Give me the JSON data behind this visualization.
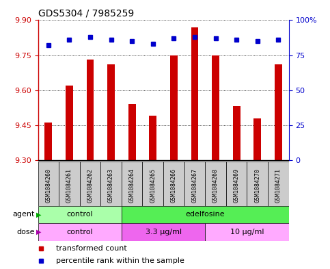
{
  "title": "GDS5304 / 7985259",
  "samples": [
    "GSM1084260",
    "GSM1084261",
    "GSM1084262",
    "GSM1084263",
    "GSM1084264",
    "GSM1084265",
    "GSM1084266",
    "GSM1084267",
    "GSM1084268",
    "GSM1084269",
    "GSM1084270",
    "GSM1084271"
  ],
  "bar_values": [
    9.46,
    9.62,
    9.73,
    9.71,
    9.54,
    9.49,
    9.75,
    9.87,
    9.75,
    9.53,
    9.48,
    9.71
  ],
  "percentile_values": [
    82,
    86,
    88,
    86,
    85,
    83,
    87,
    88,
    87,
    86,
    85,
    86
  ],
  "ylim_left": [
    9.3,
    9.9
  ],
  "yticks_left": [
    9.3,
    9.45,
    9.6,
    9.75,
    9.9
  ],
  "yticks_right": [
    0,
    25,
    50,
    75,
    100
  ],
  "bar_color": "#cc0000",
  "dot_color": "#0000cc",
  "bar_bottom": 9.3,
  "agent_groups": [
    {
      "label": "control",
      "start": 0,
      "end": 4,
      "color": "#aaffaa"
    },
    {
      "label": "edelfosine",
      "start": 4,
      "end": 12,
      "color": "#55ee55"
    }
  ],
  "dose_groups": [
    {
      "label": "control",
      "start": 0,
      "end": 4,
      "color": "#ffaaff"
    },
    {
      "label": "3.3 μg/ml",
      "start": 4,
      "end": 8,
      "color": "#ee66ee"
    },
    {
      "label": "10 μg/ml",
      "start": 8,
      "end": 12,
      "color": "#ffaaff"
    }
  ],
  "sample_bg_color": "#cccccc",
  "legend_items": [
    {
      "label": "transformed count",
      "color": "#cc0000"
    },
    {
      "label": "percentile rank within the sample",
      "color": "#0000cc"
    }
  ],
  "right_axis_color": "#0000cc",
  "left_axis_color": "#cc0000",
  "title_fontsize": 10,
  "tick_fontsize": 8,
  "label_fontsize": 8,
  "sample_fontsize": 6,
  "group_fontsize": 8
}
